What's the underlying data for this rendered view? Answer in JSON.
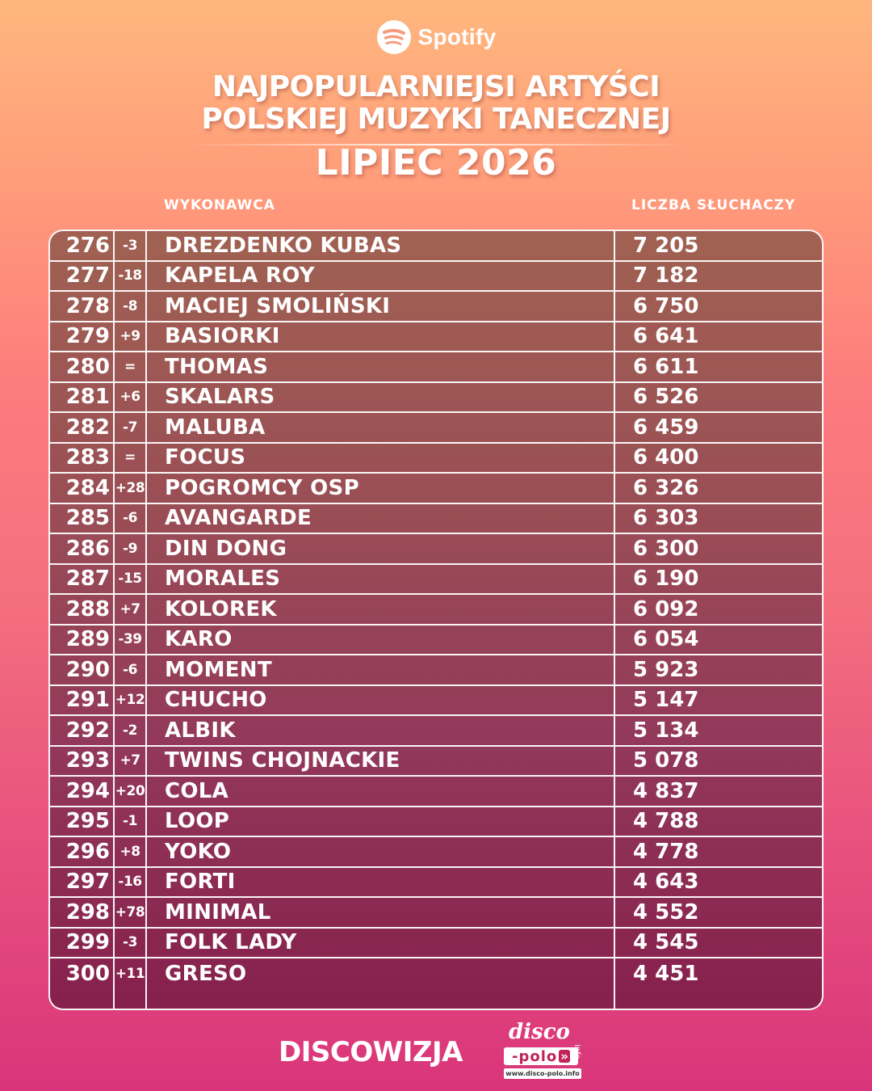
{
  "header": {
    "logo_text": "Spotify",
    "logo_icon": "spotify-icon",
    "title_line1": "NAJPOPULARNIEJSI ARTYŚCI",
    "title_line2": "POLSKIEJ MUZYKI TANECZNEJ",
    "subtitle": "LIPIEC 2026"
  },
  "columns": {
    "artist": "WYKONAWCA",
    "listeners": "LICZBA SŁUCHACZY"
  },
  "rows": [
    {
      "rank": "276",
      "change": "-3",
      "name": "DREZDENKO KUBAS",
      "listeners": "7 205"
    },
    {
      "rank": "277",
      "change": "-18",
      "name": "KAPELA ROY",
      "listeners": "7 182"
    },
    {
      "rank": "278",
      "change": "-8",
      "name": "MACIEJ SMOLIŃSKI",
      "listeners": "6 750"
    },
    {
      "rank": "279",
      "change": "+9",
      "name": "BASIORKI",
      "listeners": "6 641"
    },
    {
      "rank": "280",
      "change": "=",
      "name": "THOMAS",
      "listeners": "6 611"
    },
    {
      "rank": "281",
      "change": "+6",
      "name": "SKALARS",
      "listeners": "6 526"
    },
    {
      "rank": "282",
      "change": "-7",
      "name": "MALUBA",
      "listeners": "6 459"
    },
    {
      "rank": "283",
      "change": "=",
      "name": "FOCUS",
      "listeners": "6 400"
    },
    {
      "rank": "284",
      "change": "+28",
      "name": "POGROMCY OSP",
      "listeners": "6 326"
    },
    {
      "rank": "285",
      "change": "-6",
      "name": "AVANGARDE",
      "listeners": "6 303"
    },
    {
      "rank": "286",
      "change": "-9",
      "name": "DIN DONG",
      "listeners": "6 300"
    },
    {
      "rank": "287",
      "change": "-15",
      "name": "MORALES",
      "listeners": "6 190"
    },
    {
      "rank": "288",
      "change": "+7",
      "name": "KOLOREK",
      "listeners": "6 092"
    },
    {
      "rank": "289",
      "change": "-39",
      "name": "KARO",
      "listeners": "6 054"
    },
    {
      "rank": "290",
      "change": "-6",
      "name": "MOMENT",
      "listeners": "5 923"
    },
    {
      "rank": "291",
      "change": "+12",
      "name": "CHUCHO",
      "listeners": "5 147"
    },
    {
      "rank": "292",
      "change": "-2",
      "name": "ALBIK",
      "listeners": "5 134"
    },
    {
      "rank": "293",
      "change": "+7",
      "name": "TWINS CHOJNACKIE",
      "listeners": "5 078"
    },
    {
      "rank": "294",
      "change": "+20",
      "name": "COLA",
      "listeners": "4 837"
    },
    {
      "rank": "295",
      "change": "-1",
      "name": "LOOP",
      "listeners": "4 788"
    },
    {
      "rank": "296",
      "change": "+8",
      "name": "YOKO",
      "listeners": "4 778"
    },
    {
      "rank": "297",
      "change": "-16",
      "name": "FORTI",
      "listeners": "4 643"
    },
    {
      "rank": "298",
      "change": "+78",
      "name": "MINIMAL",
      "listeners": "4 552"
    },
    {
      "rank": "299",
      "change": "-3",
      "name": "FOLK LADY",
      "listeners": "4 545"
    },
    {
      "rank": "300",
      "change": "+11",
      "name": "GRESO",
      "listeners": "4 451"
    }
  ],
  "footer": {
    "brand": "DISCOWIZJA",
    "partner_word": "disco",
    "partner_box": "-polo",
    "partner_arrow": "»",
    "partner_suffix": "info",
    "partner_url": "www.disco-polo.info"
  }
}
